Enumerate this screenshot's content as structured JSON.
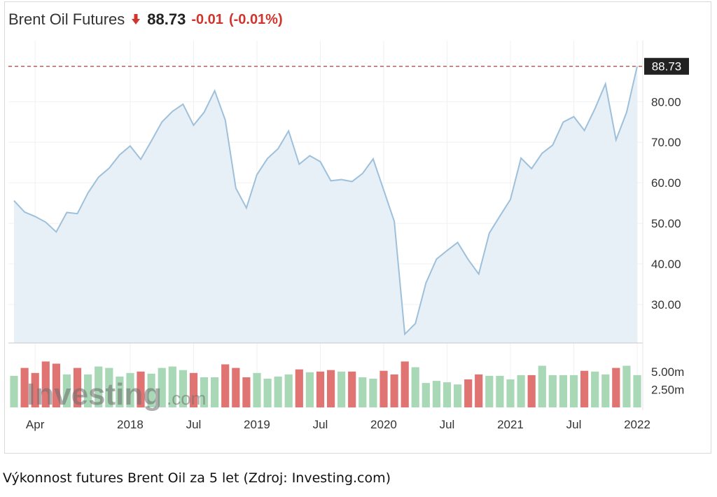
{
  "header": {
    "title": "Brent Oil Futures",
    "price": "88.73",
    "change": "-0.01",
    "change_pct": "(-0.01%)"
  },
  "colors": {
    "line": "#9ec0da",
    "area": "#e7eff7",
    "up_volume": "#a8d8b6",
    "down_volume": "#e07473",
    "negative": "#d0352d",
    "last_price_line": "#a94442",
    "last_price_label_bg": "#222222"
  },
  "watermark": "Investing.com",
  "chart_data": {
    "type": "area",
    "title": "Brent Oil Futures",
    "last_value_label": "88.73",
    "y_ticks": [
      "80.00",
      "70.00",
      "60.00",
      "50.00",
      "40.00",
      "30.00"
    ],
    "y_tick_values": [
      80,
      70,
      60,
      50,
      40,
      30
    ],
    "ylim": [
      20.5,
      93
    ],
    "x_ticks": [
      "Apr",
      "2018",
      "Jul",
      "2019",
      "Jul",
      "2020",
      "Jul",
      "2021",
      "Jul",
      "2022"
    ],
    "x_tick_months": [
      2,
      11,
      17,
      23,
      29,
      35,
      41,
      47,
      53,
      59
    ],
    "price_series": {
      "name": "Brent Oil Futures",
      "values": [
        55.6,
        52.8,
        51.7,
        50.3,
        47.9,
        52.7,
        52.4,
        57.5,
        61.4,
        63.6,
        66.9,
        69.1,
        65.8,
        70.3,
        75.0,
        77.6,
        79.4,
        74.2,
        77.4,
        82.7,
        75.5,
        58.7,
        53.8,
        62.0,
        66.0,
        68.4,
        72.8,
        64.6,
        66.7,
        65.2,
        60.5,
        60.8,
        60.3,
        62.3,
        65.9,
        58.2,
        50.5,
        22.7,
        25.3,
        35.3,
        41.2,
        43.3,
        45.3,
        41.1,
        37.5,
        47.6,
        51.8,
        55.9,
        66.1,
        63.5,
        67.3,
        69.3,
        75.0,
        76.3,
        72.9,
        78.3,
        84.4,
        70.6,
        77.4,
        88.73
      ]
    },
    "volume_axis": {
      "ticks": [
        "5.00m",
        "2.50m"
      ],
      "tick_values": [
        5.0,
        2.5
      ],
      "max": 8.0
    },
    "volume_series": {
      "values": [
        4.4,
        5.5,
        4.8,
        6.4,
        6.1,
        4.6,
        5.5,
        4.6,
        5.7,
        5.5,
        4.3,
        4.8,
        5.0,
        4.7,
        5.5,
        5.7,
        5.2,
        4.8,
        4.2,
        4.2,
        6.0,
        5.5,
        4.2,
        4.8,
        4.0,
        4.3,
        4.6,
        5.3,
        4.9,
        5.0,
        5.2,
        5.0,
        5.0,
        4.2,
        4.0,
        5.1,
        4.6,
        6.4,
        5.6,
        3.4,
        3.7,
        3.5,
        3.2,
        3.9,
        4.6,
        4.4,
        4.4,
        3.9,
        4.5,
        4.5,
        5.8,
        4.5,
        4.5,
        4.5,
        5.1,
        5.0,
        4.6,
        5.5,
        5.8,
        4.5
      ],
      "direction": [
        "up",
        "down",
        "down",
        "down",
        "down",
        "up",
        "down",
        "up",
        "up",
        "up",
        "up",
        "up",
        "down",
        "up",
        "up",
        "up",
        "up",
        "down",
        "up",
        "up",
        "down",
        "down",
        "down",
        "up",
        "up",
        "up",
        "up",
        "down",
        "up",
        "down",
        "down",
        "up",
        "down",
        "up",
        "up",
        "down",
        "down",
        "down",
        "up",
        "up",
        "up",
        "up",
        "up",
        "down",
        "down",
        "up",
        "up",
        "up",
        "up",
        "down",
        "up",
        "up",
        "up",
        "up",
        "down",
        "up",
        "up",
        "down",
        "up",
        "up"
      ]
    }
  },
  "caption": "Výkonnost futures Brent Oil za 5 let (Zdroj: Investing.com)"
}
